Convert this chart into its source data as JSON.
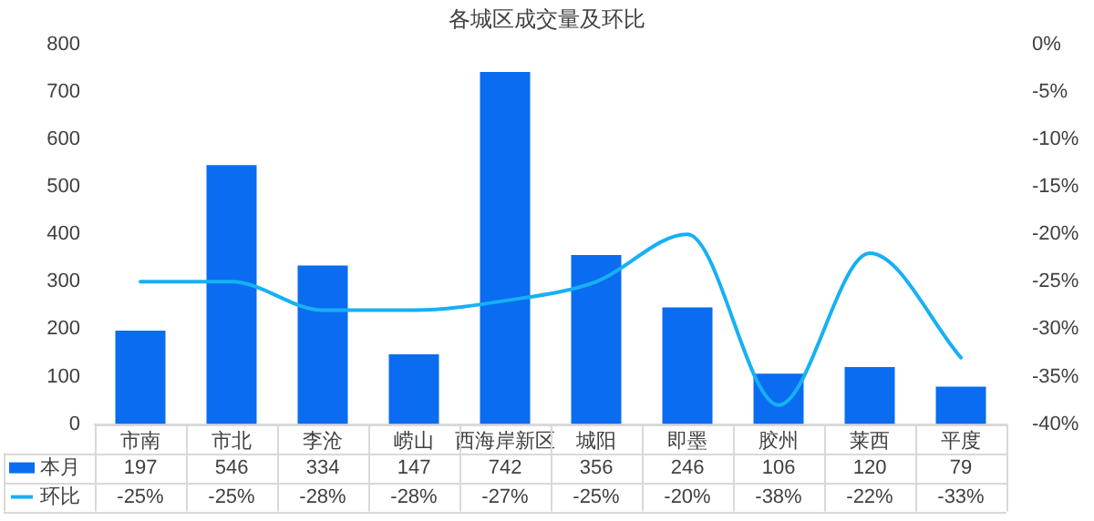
{
  "chart_data": {
    "type": "bar",
    "title": "各城区成交量及环比",
    "categories": [
      "市南",
      "市北",
      "李沧",
      "崂山",
      "西海岸新区",
      "城阳",
      "即墨",
      "胶州",
      "莱西",
      "平度"
    ],
    "series": [
      {
        "name": "本月",
        "color": "#0a6cf0",
        "values": [
          197,
          546,
          334,
          147,
          742,
          356,
          246,
          106,
          120,
          79
        ],
        "value_labels": [
          "197",
          "546",
          "334",
          "147",
          "742",
          "356",
          "246",
          "106",
          "120",
          "79"
        ]
      },
      {
        "name": "环比",
        "type": "line",
        "axis": "y2",
        "color": "#17b0f5",
        "values": [
          -25,
          -25,
          -28,
          -28,
          -27,
          -25,
          -20,
          -38,
          -22,
          -33
        ],
        "value_labels": [
          "-25%",
          "-25%",
          "-28%",
          "-28%",
          "-27%",
          "-25%",
          "-20%",
          "-38%",
          "-22%",
          "-33%"
        ]
      }
    ],
    "ylim": [
      0,
      800
    ],
    "yticks": [
      0,
      100,
      200,
      300,
      400,
      500,
      600,
      700,
      800
    ],
    "y2lim": [
      -40,
      0
    ],
    "y2ticks": [
      {
        "value": 0,
        "label": "0%"
      },
      {
        "value": -5,
        "label": "-5%"
      },
      {
        "value": -10,
        "label": "-10%"
      },
      {
        "value": -15,
        "label": "-15%"
      },
      {
        "value": -20,
        "label": "-20%"
      },
      {
        "value": -25,
        "label": "-25%"
      },
      {
        "value": -30,
        "label": "-30%"
      },
      {
        "value": -35,
        "label": "-35%"
      },
      {
        "value": -40,
        "label": "-40%"
      }
    ],
    "grid": false,
    "legend": "bottom left",
    "marker": "none",
    "line_style": "solid"
  }
}
